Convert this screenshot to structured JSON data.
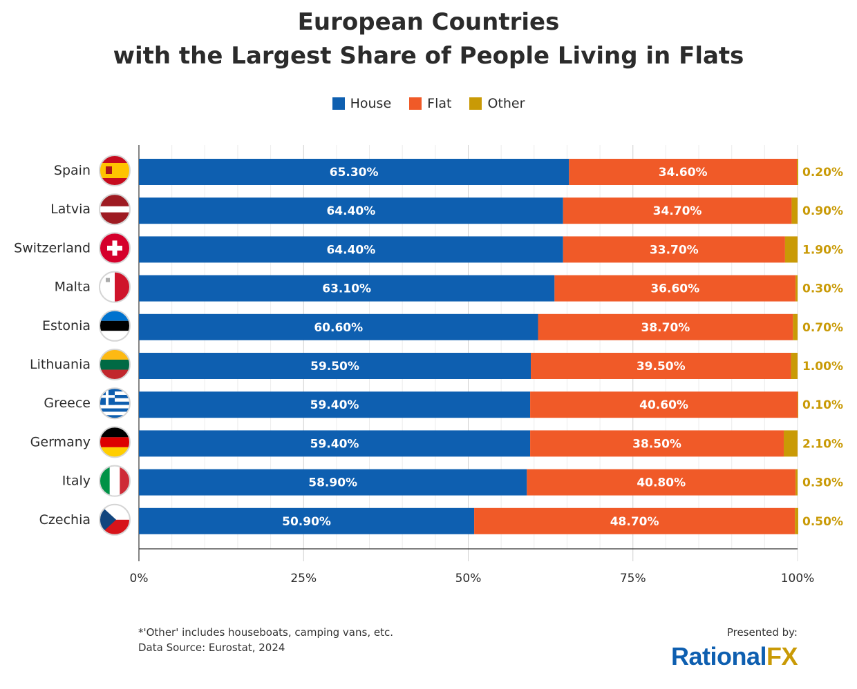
{
  "chart_data": {
    "type": "bar",
    "orientation": "horizontal",
    "stacked": true,
    "title": "European Countries",
    "subtitle": "with the Largest Share of People Living in Flats",
    "categories": [
      "Spain",
      "Latvia",
      "Switzerland",
      "Malta",
      "Estonia",
      "Lithuania",
      "Greece",
      "Germany",
      "Italy",
      "Czechia"
    ],
    "series": [
      {
        "name": "House",
        "color": "#0e5fb0",
        "values": [
          65.3,
          64.4,
          64.4,
          63.1,
          60.6,
          59.5,
          59.4,
          59.4,
          58.9,
          50.9
        ],
        "labels": [
          "65.30%",
          "64.40%",
          "64.40%",
          "63.10%",
          "60.60%",
          "59.50%",
          "59.40%",
          "59.40%",
          "58.90%",
          "50.90%"
        ]
      },
      {
        "name": "Flat",
        "color": "#f05a28",
        "values": [
          34.6,
          34.7,
          33.7,
          36.6,
          38.7,
          39.5,
          40.6,
          38.5,
          40.8,
          48.7
        ],
        "labels": [
          "34.60%",
          "34.70%",
          "33.70%",
          "36.60%",
          "38.70%",
          "39.50%",
          "40.60%",
          "38.50%",
          "40.80%",
          "48.70%"
        ]
      },
      {
        "name": "Other",
        "color": "#c99a06",
        "values": [
          0.2,
          0.9,
          1.9,
          0.3,
          0.7,
          1.0,
          0.1,
          2.1,
          0.3,
          0.5
        ],
        "labels": [
          "0.20%",
          "0.90%",
          "1.90%",
          "0.30%",
          "0.70%",
          "1.00%",
          "0.10%",
          "2.10%",
          "0.30%",
          "0.50%"
        ]
      }
    ],
    "xlim": [
      0,
      100
    ],
    "xticks": [
      "0%",
      "25%",
      "50%",
      "75%",
      "100%"
    ],
    "grid": true,
    "legend_position": "top"
  },
  "flags": [
    "spain-flag",
    "latvia-flag",
    "switzerland-flag",
    "malta-flag",
    "estonia-flag",
    "lithuania-flag",
    "greece-flag",
    "germany-flag",
    "italy-flag",
    "czechia-flag"
  ],
  "footer": {
    "note": "*'Other' includes houseboats, camping vans, etc.",
    "source": "Data Source: Eurostat, 2024",
    "presented_by": "Presented by:",
    "logo_part1": "Rational",
    "logo_part2": "FX"
  }
}
